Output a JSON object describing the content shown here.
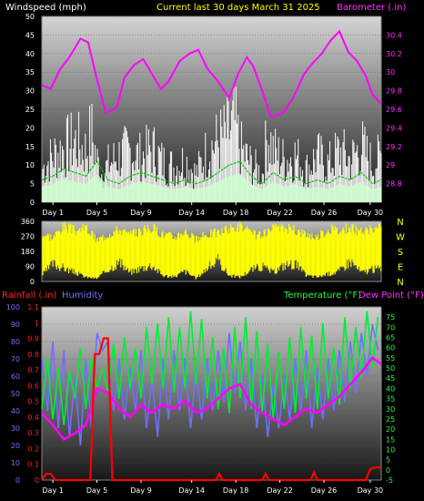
{
  "header": {
    "left_title": "Windspeed (mph)",
    "center_title": "Current last 30 days March 31 2025",
    "right_title": "Barometer (.in)"
  },
  "lower_header": {
    "rainfall_label": "Rainfall (.in)",
    "humidity_label": "Humidity",
    "temperature_label": "Temperature (°F)",
    "dewpoint_label": "Dew Point (°F)"
  },
  "x_axis": {
    "labels": [
      "Day 1",
      "Day 5",
      "Day 9",
      "Day 14",
      "Day 18",
      "Day 22",
      "Day 26",
      "Day 30"
    ],
    "positions_day": [
      1,
      5,
      9,
      13.6,
      17.6,
      21.6,
      25.6,
      29.8
    ],
    "range_days": [
      0,
      30.8
    ]
  },
  "colors": {
    "wind_gust": "#ffffff",
    "wind_avg": "#00cc00",
    "barometer": "#ff00ff",
    "direction": "#ffff00",
    "rain": "#ff0000",
    "humidity": "#6f6fff",
    "temperature": "#00ee33",
    "dewpoint": "#ff00ff",
    "title_yellow": "#ffff00"
  },
  "chart_data": [
    {
      "type": "area",
      "id": "wind-barometer",
      "title": "Current last 30 days March 31 2025",
      "ylabel_left": "Windspeed (mph)",
      "ylabel_right": "Barometer (.in)",
      "ylim_left": [
        0,
        50
      ],
      "ylim_right": [
        28.6,
        30.6
      ],
      "yticks_left": [
        0,
        5,
        10,
        15,
        20,
        25,
        30,
        35,
        40,
        45,
        50
      ],
      "yticks_right": [
        "28.8",
        "29",
        "29.2",
        "29.4",
        "29.6",
        "29.8",
        "30",
        "30.2",
        "30.4"
      ],
      "series": [
        {
          "name": "Windspeed (mph)",
          "x": [
            0,
            1,
            2,
            3,
            4,
            4.5,
            5,
            5.5,
            6,
            7,
            8,
            9,
            10,
            11,
            12,
            13,
            14,
            15,
            16,
            17,
            17.5,
            18,
            19,
            20,
            20.5,
            21,
            22,
            23,
            24,
            25,
            26,
            27,
            28,
            29,
            30,
            30.8
          ],
          "values": [
            14,
            20,
            23,
            26,
            22,
            30,
            18,
            12,
            16,
            20,
            22,
            19,
            23,
            17,
            15,
            18,
            12,
            22,
            26,
            30,
            34,
            23,
            16,
            12,
            30,
            22,
            18,
            20,
            14,
            20,
            16,
            22,
            18,
            24,
            16,
            20
          ]
        },
        {
          "name": "Average wind",
          "x": [
            0,
            1,
            2,
            3,
            4,
            5,
            6,
            7,
            8,
            9,
            10,
            11,
            12,
            13,
            14,
            15,
            16,
            17,
            18,
            19,
            20,
            21,
            22,
            23,
            24,
            25,
            26,
            27,
            28,
            29,
            30,
            30.8
          ],
          "values": [
            6,
            7,
            9,
            8,
            7,
            11,
            6,
            5,
            7,
            8,
            7,
            6,
            5,
            6,
            5,
            6,
            8,
            10,
            11,
            7,
            5,
            8,
            6,
            7,
            5,
            6,
            5,
            7,
            6,
            8,
            5,
            6
          ]
        },
        {
          "name": "Barometer (.in)",
          "x": [
            0,
            0.8,
            1.6,
            2.6,
            3.5,
            4.2,
            5,
            5.8,
            6.8,
            7.5,
            8.4,
            9.2,
            10,
            10.8,
            11.5,
            12.5,
            13.4,
            14.2,
            15,
            16,
            17,
            17.8,
            18.6,
            19.2,
            20,
            20.8,
            21.8,
            22.8,
            23.8,
            24.6,
            25.4,
            26.2,
            27,
            27.8,
            28.6,
            29.4,
            30,
            30.8
          ],
          "values": [
            29.86,
            29.82,
            30.02,
            30.18,
            30.36,
            30.32,
            29.92,
            29.56,
            29.62,
            29.94,
            30.08,
            30.14,
            29.98,
            29.82,
            29.9,
            30.12,
            30.2,
            30.24,
            30.04,
            29.9,
            29.72,
            29.98,
            30.16,
            30.06,
            29.8,
            29.52,
            29.55,
            29.72,
            29.98,
            30.1,
            30.2,
            30.34,
            30.44,
            30.22,
            30.12,
            29.96,
            29.76,
            29.66
          ]
        }
      ]
    },
    {
      "type": "area",
      "id": "wind-direction",
      "ylim": [
        0,
        360
      ],
      "yticks": [
        0,
        90,
        180,
        270,
        360
      ],
      "compass": [
        "N",
        "W",
        "S",
        "E",
        "N"
      ],
      "series": [
        {
          "name": "Wind direction",
          "x": [
            0,
            1,
            2,
            3,
            4,
            5,
            6,
            7,
            8,
            9,
            10,
            11,
            12,
            13,
            14,
            15,
            16,
            17,
            18,
            19,
            20,
            21,
            22,
            23,
            24,
            25,
            26,
            27,
            28,
            29,
            30,
            30.8
          ],
          "low": [
            40,
            120,
            90,
            60,
            30,
            20,
            80,
            130,
            60,
            90,
            110,
            40,
            30,
            70,
            20,
            90,
            140,
            40,
            30,
            80,
            100,
            60,
            110,
            120,
            40,
            30,
            50,
            70,
            140,
            60,
            80,
            90
          ],
          "high": [
            300,
            280,
            350,
            320,
            340,
            260,
            300,
            330,
            290,
            320,
            340,
            300,
            280,
            320,
            260,
            300,
            310,
            330,
            350,
            300,
            290,
            330,
            340,
            320,
            300,
            280,
            330,
            320,
            340,
            310,
            330,
            340
          ]
        }
      ]
    },
    {
      "type": "line",
      "id": "temp-rain",
      "ylabel_left_1": "Rainfall (.in)",
      "ylabel_left_2": "Humidity",
      "ylabel_right": "Temperature (°F)",
      "ylim_humidity": [
        0,
        100
      ],
      "ylim_rain": [
        0,
        1.1
      ],
      "ylim_temperature": [
        -5,
        80
      ],
      "yticks_humidity": [
        0,
        10,
        20,
        30,
        40,
        50,
        60,
        70,
        80,
        90,
        100
      ],
      "yticks_rain": [
        "0",
        "0.1",
        "0.2",
        "0.3",
        "0.4",
        "0.5",
        "0.6",
        "0.7",
        "0.8",
        "0.9",
        "1",
        "1.1"
      ],
      "yticks_temperature": [
        -5,
        0,
        5,
        10,
        15,
        20,
        25,
        30,
        35,
        40,
        45,
        50,
        55,
        60,
        65,
        70,
        75
      ],
      "series": [
        {
          "name": "Humidity",
          "x": [
            0,
            0.5,
            1,
            1.5,
            2,
            2.5,
            3,
            3.5,
            4,
            4.5,
            5,
            5.5,
            6,
            6.5,
            7,
            7.5,
            8,
            8.5,
            9,
            9.5,
            10,
            10.5,
            11,
            11.5,
            12,
            12.5,
            13,
            13.5,
            14,
            14.5,
            15,
            15.5,
            16,
            16.5,
            17,
            17.5,
            18,
            18.5,
            19,
            19.5,
            20,
            20.5,
            21,
            21.5,
            22,
            22.5,
            23,
            23.5,
            24,
            24.5,
            25,
            25.5,
            26,
            26.5,
            27,
            27.5,
            28,
            28.5,
            29,
            29.5,
            30,
            30.5
          ],
          "values": [
            70,
            40,
            80,
            30,
            75,
            25,
            60,
            20,
            70,
            30,
            85,
            75,
            80,
            40,
            70,
            35,
            65,
            40,
            75,
            30,
            60,
            25,
            70,
            35,
            75,
            40,
            70,
            30,
            65,
            35,
            70,
            40,
            75,
            45,
            85,
            50,
            80,
            40,
            70,
            30,
            60,
            25,
            55,
            30,
            60,
            35,
            70,
            40,
            75,
            30,
            65,
            35,
            70,
            40,
            75,
            45,
            80,
            50,
            85,
            60,
            90,
            75
          ]
        },
        {
          "name": "Temperature (°F)",
          "x": [
            0,
            0.5,
            1,
            1.5,
            2,
            2.5,
            3,
            3.5,
            4,
            4.5,
            5,
            5.5,
            6,
            6.5,
            7,
            7.5,
            8,
            8.5,
            9,
            9.5,
            10,
            10.5,
            11,
            11.5,
            12,
            12.5,
            13,
            13.5,
            14,
            14.5,
            15,
            15.5,
            16,
            16.5,
            17,
            17.5,
            18,
            18.5,
            19,
            19.5,
            20,
            20.5,
            21,
            21.5,
            22,
            22.5,
            23,
            23.5,
            24,
            24.5,
            25,
            25.5,
            26,
            26.5,
            27,
            27.5,
            28,
            28.5,
            29,
            29.5,
            30,
            30.5
          ],
          "values": [
            30,
            55,
            25,
            50,
            22,
            48,
            35,
            60,
            30,
            55,
            40,
            50,
            38,
            62,
            35,
            65,
            40,
            60,
            35,
            70,
            42,
            72,
            40,
            75,
            38,
            70,
            40,
            78,
            42,
            74,
            35,
            65,
            30,
            60,
            28,
            70,
            35,
            75,
            30,
            68,
            28,
            62,
            25,
            58,
            30,
            65,
            28,
            70,
            35,
            66,
            30,
            72,
            35,
            60,
            32,
            75,
            40,
            70,
            45,
            78,
            50,
            75
          ]
        },
        {
          "name": "Dew Point (°F)",
          "x": [
            0,
            1,
            2,
            3,
            4,
            5,
            6,
            7,
            8,
            9,
            10,
            11,
            12,
            13,
            14,
            15,
            16,
            17,
            18,
            19,
            20,
            21,
            22,
            23,
            24,
            25,
            26,
            27,
            28,
            29,
            30,
            30.8
          ],
          "values": [
            28,
            22,
            15,
            18,
            22,
            40,
            38,
            30,
            26,
            32,
            28,
            32,
            30,
            34,
            28,
            30,
            35,
            40,
            42,
            32,
            28,
            25,
            22,
            26,
            30,
            28,
            32,
            36,
            42,
            48,
            55,
            52
          ]
        },
        {
          "name": "Rainfall (.in)",
          "x": [
            0,
            0.4,
            0.8,
            1.2,
            4.4,
            4.8,
            5.2,
            5.6,
            6,
            6.4,
            15.8,
            16.1,
            16.4,
            20,
            20.3,
            20.6,
            24.4,
            24.7,
            25,
            29.4,
            29.8,
            30.3,
            30.8
          ],
          "values": [
            0,
            0.04,
            0.04,
            0,
            0,
            0.8,
            0.8,
            0.9,
            0.9,
            0,
            0,
            0.04,
            0,
            0,
            0.04,
            0,
            0,
            0.05,
            0,
            0,
            0.07,
            0.08,
            0.08
          ]
        }
      ]
    }
  ]
}
